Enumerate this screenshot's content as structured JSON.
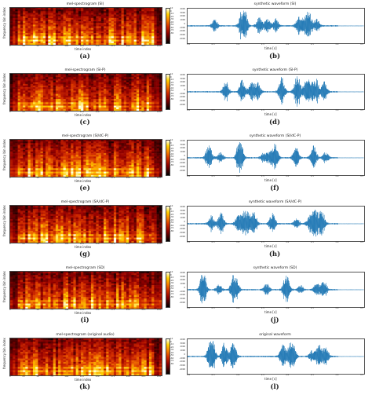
{
  "colors": {
    "waveform": "#1f77b4",
    "spectrogram_colormap": [
      "#000000",
      "#8b0000",
      "#d12d00",
      "#f57d00",
      "#ffd000",
      "#ffffe8"
    ]
  },
  "spectrogram": {
    "y_label": "frequency bin index",
    "x_label": "time index",
    "x_ticks": [
      "0",
      "25",
      "50",
      "75",
      "100",
      "125",
      "150",
      "175",
      "200",
      "225",
      "250"
    ],
    "colorbar_ticks": [
      "10",
      "0",
      "-10",
      "-20",
      "-30",
      "-40",
      "-50",
      "-60",
      "-70",
      "-80"
    ]
  },
  "waveform": {
    "x_label": "time [s]",
    "x_ticks": [
      "0.0",
      "0.5",
      "1.0",
      "1.5",
      "2.0",
      "2.5",
      "3.0",
      "3.5"
    ],
    "y_ticks": [
      "4000",
      "3000",
      "2000",
      "1000",
      "0",
      "-1000",
      "-2000",
      "-3000",
      "-4000"
    ]
  },
  "rows": [
    {
      "spec_title": "mel-spectrogram (SI)",
      "wave_title": "synthetic waveform (SI)",
      "spec_caption": "(a)",
      "wave_caption": "(b)"
    },
    {
      "spec_title": "mel-spectrogram (SI-P)",
      "wave_title": "synthetic waveform (SI-P)",
      "spec_caption": "(c)",
      "wave_caption": "(d)"
    },
    {
      "spec_title": "mel-spectrogram (SI/dC-P)",
      "wave_title": "synthetic waveform (SI/dC-P)",
      "spec_caption": "(e)",
      "wave_caption": "(f)"
    },
    {
      "spec_title": "mel-spectrogram (SA/dC-P)",
      "wave_title": "synthetic waveform (SA/dC-P)",
      "spec_caption": "(g)",
      "wave_caption": "(h)"
    },
    {
      "spec_title": "mel-spectrogram (SD)",
      "wave_title": "synthetic waveform (SD)",
      "spec_caption": "(i)",
      "wave_caption": "(j)"
    },
    {
      "spec_title": "mel-spectrogram (original audio)",
      "wave_title": "original waveform",
      "spec_caption": "(k)",
      "wave_caption": "(l)"
    }
  ]
}
